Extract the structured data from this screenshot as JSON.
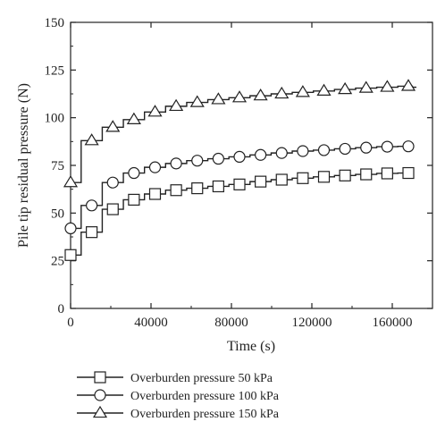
{
  "chart_data": {
    "type": "line",
    "xlabel": "Time (s)",
    "ylabel": "Pile tip residual pressure (N)",
    "xlim": [
      0,
      180000
    ],
    "ylim": [
      0,
      150
    ],
    "xticks": [
      0,
      40000,
      80000,
      120000,
      160000
    ],
    "xtick_labels": [
      "0",
      "40000",
      "80000",
      "120000",
      "160000"
    ],
    "yticks": [
      0,
      25,
      50,
      75,
      100,
      125,
      150
    ],
    "ytick_labels": [
      "0",
      "25",
      "50",
      "75",
      "100",
      "125",
      "150"
    ],
    "grid": false,
    "legend_position": "bottom",
    "series": [
      {
        "name": "Overburden pressure 50 kPa",
        "marker": "square",
        "x": [
          0,
          10500,
          21000,
          31500,
          42000,
          52500,
          63000,
          73500,
          84000,
          94500,
          105000,
          115500,
          126000,
          136500,
          147000,
          157500,
          168000
        ],
        "y": [
          28,
          40,
          52,
          57,
          60,
          62,
          63,
          64,
          65,
          66.5,
          67.5,
          68.3,
          69,
          69.7,
          70.3,
          70.8,
          71
        ]
      },
      {
        "name": "Overburden pressure 100 kPa",
        "marker": "circle",
        "x": [
          0,
          10500,
          21000,
          31500,
          42000,
          52500,
          63000,
          73500,
          84000,
          94500,
          105000,
          115500,
          126000,
          136500,
          147000,
          157500,
          168000
        ],
        "y": [
          42,
          54,
          66,
          71,
          74,
          76,
          77.5,
          78.5,
          79.5,
          80.5,
          81.5,
          82.5,
          83,
          83.7,
          84.3,
          84.8,
          85
        ]
      },
      {
        "name": "Overburden pressure 150 kPa",
        "marker": "triangle",
        "x": [
          0,
          10500,
          21000,
          31500,
          42000,
          52500,
          63000,
          73500,
          84000,
          94500,
          105000,
          115500,
          126000,
          136500,
          147000,
          157500,
          168000,
          172000
        ],
        "y": [
          66,
          88,
          95,
          99,
          103,
          106,
          108,
          109.5,
          110.5,
          111.5,
          112.5,
          113.3,
          114,
          114.8,
          115.5,
          116,
          116.5,
          116
        ]
      }
    ]
  }
}
